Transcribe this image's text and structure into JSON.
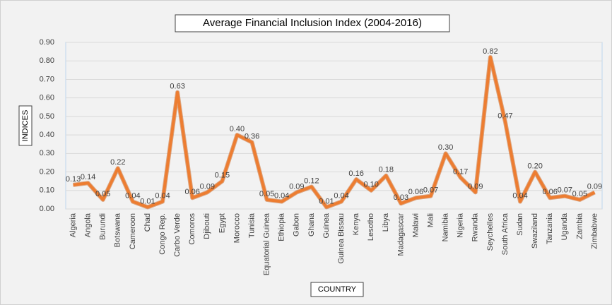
{
  "chart_data": {
    "type": "line",
    "title": "Average Financial Inclusion Index (2004-2016)",
    "x_label": "COUNTRY",
    "y_label": "INDICES",
    "categories": [
      "Algeria",
      "Angola",
      "Burundi",
      "Botswana",
      "Cameroon",
      "Chad",
      "Congo Rep.",
      "Carbo Verde",
      "Comoros",
      "Djibouti",
      "Egypt",
      "Morocco",
      "Tunisia",
      "Equatorial Guinea",
      "Ethiopia",
      "Gabon",
      "Ghana",
      "Guinea",
      "Guinea Bissau",
      "Kenya",
      "Lesotho",
      "Libya",
      "Madagascar",
      "Malawi",
      "Mali",
      "Namibia",
      "Nigeria",
      "Rwanda",
      "Seychelles",
      "South Africa",
      "Sudan",
      "Swaziland",
      "Tanzania",
      "Uganda",
      "Zambia",
      "Zimbabwe"
    ],
    "series": [
      {
        "name": "Average Financial Inclusion Index",
        "color": "#ed7d31",
        "values": [
          0.13,
          0.14,
          0.05,
          0.22,
          0.04,
          0.01,
          0.04,
          0.63,
          0.06,
          0.09,
          0.15,
          0.4,
          0.36,
          0.05,
          0.04,
          0.09,
          0.12,
          0.01,
          0.04,
          0.16,
          0.1,
          0.18,
          0.03,
          0.06,
          0.07,
          0.3,
          0.17,
          0.09,
          0.82,
          0.47,
          0.04,
          0.2,
          0.06,
          0.07,
          0.05,
          0.09
        ],
        "value_labels": [
          "0.13",
          "0.14",
          "0.05",
          "0.22",
          "0.04",
          "0.01",
          "0.04",
          "0.63",
          "0.06",
          "0.09",
          "0.15",
          "0.40",
          "0.36",
          "0.05",
          "0.04",
          "0.09",
          "0.12",
          "0.01",
          "0.04",
          "0.16",
          "0.10",
          "0.18",
          "0.03",
          "0.06",
          "0.07",
          "0.30",
          "0.17",
          "0.09",
          "0.82",
          "0.47",
          "0.04",
          "0.20",
          "0.06",
          "0.07",
          "0.05",
          "0.09"
        ]
      }
    ],
    "ylim": [
      0,
      0.9
    ],
    "yticks": [
      {
        "value": 0,
        "label": "0.00"
      },
      {
        "value": 0.1,
        "label": "0.10"
      },
      {
        "value": 0.2,
        "label": "0.20"
      },
      {
        "value": 0.3,
        "label": "0.30"
      },
      {
        "value": 0.4,
        "label": "0.40"
      },
      {
        "value": 0.5,
        "label": "0.50"
      },
      {
        "value": 0.6,
        "label": "0.60"
      },
      {
        "value": 0.7,
        "label": "0.70"
      },
      {
        "value": 0.8,
        "label": "0.80"
      },
      {
        "value": 0.9,
        "label": "0.90"
      }
    ],
    "grid": true
  }
}
